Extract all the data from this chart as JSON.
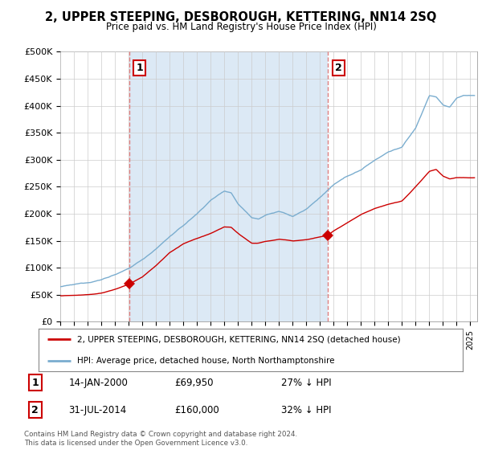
{
  "title": "2, UPPER STEEPING, DESBOROUGH, KETTERING, NN14 2SQ",
  "subtitle": "Price paid vs. HM Land Registry's House Price Index (HPI)",
  "ylim": [
    0,
    500000
  ],
  "yticks": [
    0,
    50000,
    100000,
    150000,
    200000,
    250000,
    300000,
    350000,
    400000,
    450000,
    500000
  ],
  "ytick_labels": [
    "£0",
    "£50K",
    "£100K",
    "£150K",
    "£200K",
    "£250K",
    "£300K",
    "£350K",
    "£400K",
    "£450K",
    "£500K"
  ],
  "xlim_start": 1995.0,
  "xlim_end": 2025.5,
  "legend_line1": "2, UPPER STEEPING, DESBOROUGH, KETTERING, NN14 2SQ (detached house)",
  "legend_line2": "HPI: Average price, detached house, North Northamptonshire",
  "marker1_x": 2000.04,
  "marker1_y": 69950,
  "marker1_label": "1",
  "marker2_x": 2014.58,
  "marker2_y": 160000,
  "marker2_label": "2",
  "vline1_x": 2000.04,
  "vline2_x": 2014.58,
  "shade_color": "#dce9f5",
  "table_row1": [
    "1",
    "14-JAN-2000",
    "£69,950",
    "27% ↓ HPI"
  ],
  "table_row2": [
    "2",
    "31-JUL-2014",
    "£160,000",
    "32% ↓ HPI"
  ],
  "footer": "Contains HM Land Registry data © Crown copyright and database right 2024.\nThis data is licensed under the Open Government Licence v3.0.",
  "red_color": "#cc0000",
  "blue_color": "#7aadcf",
  "vline_color": "#e08080",
  "bg_color": "#ffffff",
  "grid_color": "#cccccc"
}
